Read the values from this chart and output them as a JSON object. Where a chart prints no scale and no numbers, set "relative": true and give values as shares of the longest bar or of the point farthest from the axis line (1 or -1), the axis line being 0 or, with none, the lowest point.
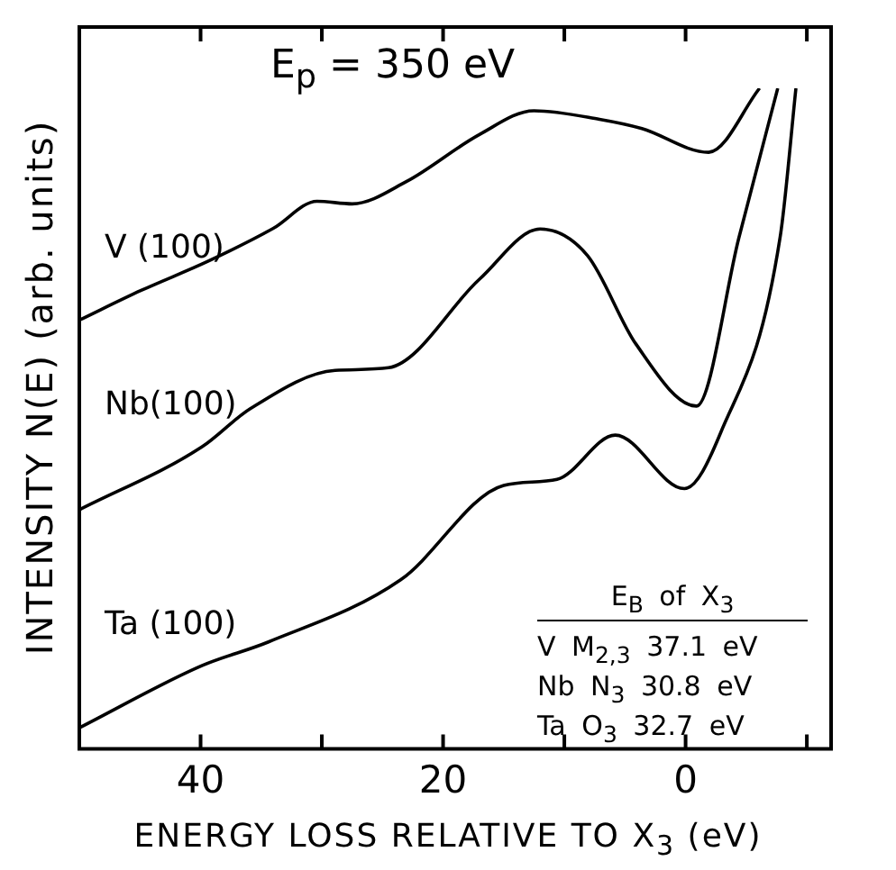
{
  "chart_data": {
    "type": "line",
    "relative": true,
    "xlabel": "ENERGY LOSS RELATIVE TO X$_{3}$ (eV)",
    "ylabel": "INTENSITY N(E) (arb. units)",
    "xlim": [
      50,
      -12
    ],
    "xticks": [
      {
        "value": 40,
        "label": "40"
      },
      {
        "value": 30,
        "label": null
      },
      {
        "value": 20,
        "label": "20"
      },
      {
        "value": 10,
        "label": null
      },
      {
        "value": 0,
        "label": "0"
      },
      {
        "value": -10,
        "label": null
      }
    ],
    "legend": false,
    "marker": "none",
    "line_style": "solid",
    "annotations": [
      "E$_{p}$ = 350 eV",
      "E$_{B}$ of X$_{3}$",
      "V M$_{2,3}$ 37.1 eV",
      "Nb N$_{3}$ 30.8 eV",
      "Ta O$_{3}$ 32.7 eV"
    ],
    "series": [
      {
        "name": "V (100)",
        "color": "#000000",
        "x": [
          50,
          44.9,
          39.4,
          34,
          30.4,
          27.5,
          23,
          17,
          12.5,
          7.1,
          3.6,
          -1.9,
          -6.1
        ],
        "values": [
          0.649,
          0.694,
          0.738,
          0.788,
          0.829,
          0.825,
          0.859,
          0.93,
          0.966,
          0.953,
          0.939,
          0.903,
          1
        ]
      },
      {
        "name": "Nb(100)",
        "color": "#000000",
        "x": [
          50,
          39.9,
          35.9,
          28.9,
          24.5,
          17,
          12,
          8.1,
          4.1,
          -0.9,
          -4.4,
          -7.6
        ],
        "values": [
          0.362,
          0.457,
          0.515,
          0.573,
          0.577,
          0.711,
          0.787,
          0.747,
          0.613,
          0.519,
          0.774,
          1
        ]
      },
      {
        "name": "Ta (100)",
        "color": "#000000",
        "x": [
          50,
          39.9,
          34.4,
          23.5,
          15,
          10.6,
          5.8,
          0.1,
          -2.9,
          -7.8,
          -9.1
        ],
        "values": [
          0.032,
          0.126,
          0.162,
          0.256,
          0.399,
          0.408,
          0.475,
          0.394,
          0.479,
          0.775,
          1
        ]
      }
    ]
  }
}
